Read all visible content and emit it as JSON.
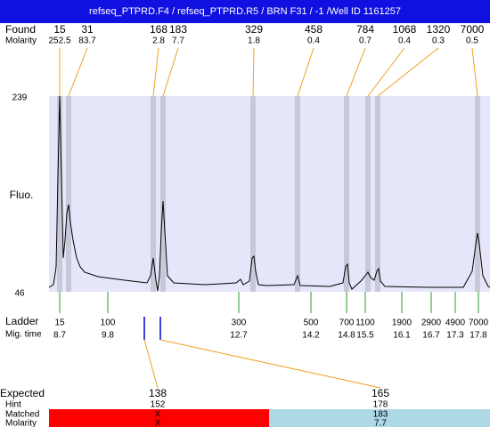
{
  "title": "refseq_PTPRD.F4 / refseq_PTPRD.R5 / BRN F31 / -1 /Well ID 1161257",
  "found": {
    "label": "Found",
    "molarity_label": "Molarity",
    "sizes": [
      15,
      31,
      168,
      183,
      329,
      458,
      784,
      1068,
      1320,
      7000
    ],
    "molarity": [
      252.5,
      83.7,
      2.8,
      7.7,
      1.8,
      0.4,
      0.7,
      0.4,
      0.3,
      0.5
    ]
  },
  "plot": {
    "y_label": "Fluo.",
    "y_max": 239,
    "y_min": 46
  },
  "ladder": {
    "label": "Ladder",
    "mig_time_label": "Mig. time",
    "sizes": [
      15,
      100,
      300,
      500,
      700,
      1100,
      1900,
      2900,
      4900,
      7000
    ],
    "mig_times": [
      8.7,
      9.8,
      12.7,
      14.2,
      14.8,
      15.5,
      16.1,
      16.7,
      17.3,
      17.8
    ]
  },
  "expected": {
    "expected_label": "Expected",
    "hint_label": "Hint",
    "matched_label": "Matched",
    "molarity_label": "Molarity",
    "items": [
      {
        "expected": 138,
        "hint": 152,
        "matched": "X",
        "molarity": "X"
      },
      {
        "expected": 165,
        "hint": 178,
        "matched": 183,
        "molarity": 7.7
      }
    ]
  }
}
